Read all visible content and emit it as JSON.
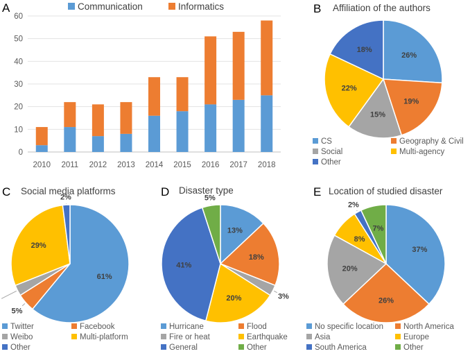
{
  "chart_data": [
    {
      "panel": "A",
      "type": "bar",
      "stacked": true,
      "categories": [
        "2010",
        "2011",
        "2012",
        "2013",
        "2014",
        "2015",
        "2016",
        "2017",
        "2018"
      ],
      "series": [
        {
          "name": "Communication",
          "color": "#5B9BD5",
          "values": [
            3,
            11,
            7,
            8,
            16,
            18,
            21,
            23,
            25
          ]
        },
        {
          "name": "Informatics",
          "color": "#ED7D31",
          "values": [
            8,
            11,
            14,
            14,
            17,
            15,
            30,
            30,
            33
          ]
        }
      ],
      "ylim": [
        0,
        60
      ],
      "yticks": [
        "0",
        "10",
        "20",
        "30",
        "40",
        "50",
        "60"
      ],
      "legend_position": "top"
    },
    {
      "panel": "B",
      "type": "pie",
      "title": "Affiliation of the authors",
      "slices": [
        {
          "name": "CS",
          "value": 26,
          "label": "26%",
          "color": "#5B9BD5"
        },
        {
          "name": "Geography & Civil",
          "value": 19,
          "label": "19%",
          "color": "#ED7D31"
        },
        {
          "name": "Social",
          "value": 15,
          "label": "15%",
          "color": "#A5A5A5"
        },
        {
          "name": "Multi-agency",
          "value": 22,
          "label": "22%",
          "color": "#FFC000"
        },
        {
          "name": "Other",
          "value": 18,
          "label": "18%",
          "color": "#4472C4"
        }
      ],
      "legend_position": "bottom"
    },
    {
      "panel": "C",
      "type": "pie",
      "title": "Social media platforms",
      "slices": [
        {
          "name": "Twitter",
          "value": 61,
          "label": "61%",
          "color": "#5B9BD5"
        },
        {
          "name": "Facebook",
          "value": 5,
          "label": "5%",
          "color": "#ED7D31"
        },
        {
          "name": "Weibo",
          "value": 3,
          "label": "3%",
          "color": "#A5A5A5"
        },
        {
          "name": "Multi-platform",
          "value": 29,
          "label": "29%",
          "color": "#FFC000"
        },
        {
          "name": "Other",
          "value": 2,
          "label": "2%",
          "color": "#4472C4"
        }
      ],
      "legend_position": "bottom"
    },
    {
      "panel": "D",
      "type": "pie",
      "title": "Disaster type",
      "slices": [
        {
          "name": "Hurricane",
          "value": 13,
          "label": "13%",
          "color": "#5B9BD5"
        },
        {
          "name": "Flood",
          "value": 18,
          "label": "18%",
          "color": "#ED7D31"
        },
        {
          "name": "Fire or heat",
          "value": 3,
          "label": "3%",
          "color": "#A5A5A5"
        },
        {
          "name": "Earthquake",
          "value": 20,
          "label": "20%",
          "color": "#FFC000"
        },
        {
          "name": "General",
          "value": 41,
          "label": "41%",
          "color": "#4472C4"
        },
        {
          "name": "Other",
          "value": 5,
          "label": "5%",
          "color": "#70AD47"
        }
      ],
      "legend_position": "bottom"
    },
    {
      "panel": "E",
      "type": "pie",
      "title": "Location of studied disaster",
      "slices": [
        {
          "name": "No specific location",
          "value": 37,
          "label": "37%",
          "color": "#5B9BD5"
        },
        {
          "name": "North America",
          "value": 26,
          "label": "26%",
          "color": "#ED7D31"
        },
        {
          "name": "Asia",
          "value": 20,
          "label": "20%",
          "color": "#A5A5A5"
        },
        {
          "name": "Europe",
          "value": 8,
          "label": "8%",
          "color": "#FFC000"
        },
        {
          "name": "South America",
          "value": 2,
          "label": "2%",
          "color": "#4472C4"
        },
        {
          "name": "Other",
          "value": 7,
          "label": "7%",
          "color": "#70AD47"
        }
      ],
      "legend_position": "bottom"
    }
  ]
}
